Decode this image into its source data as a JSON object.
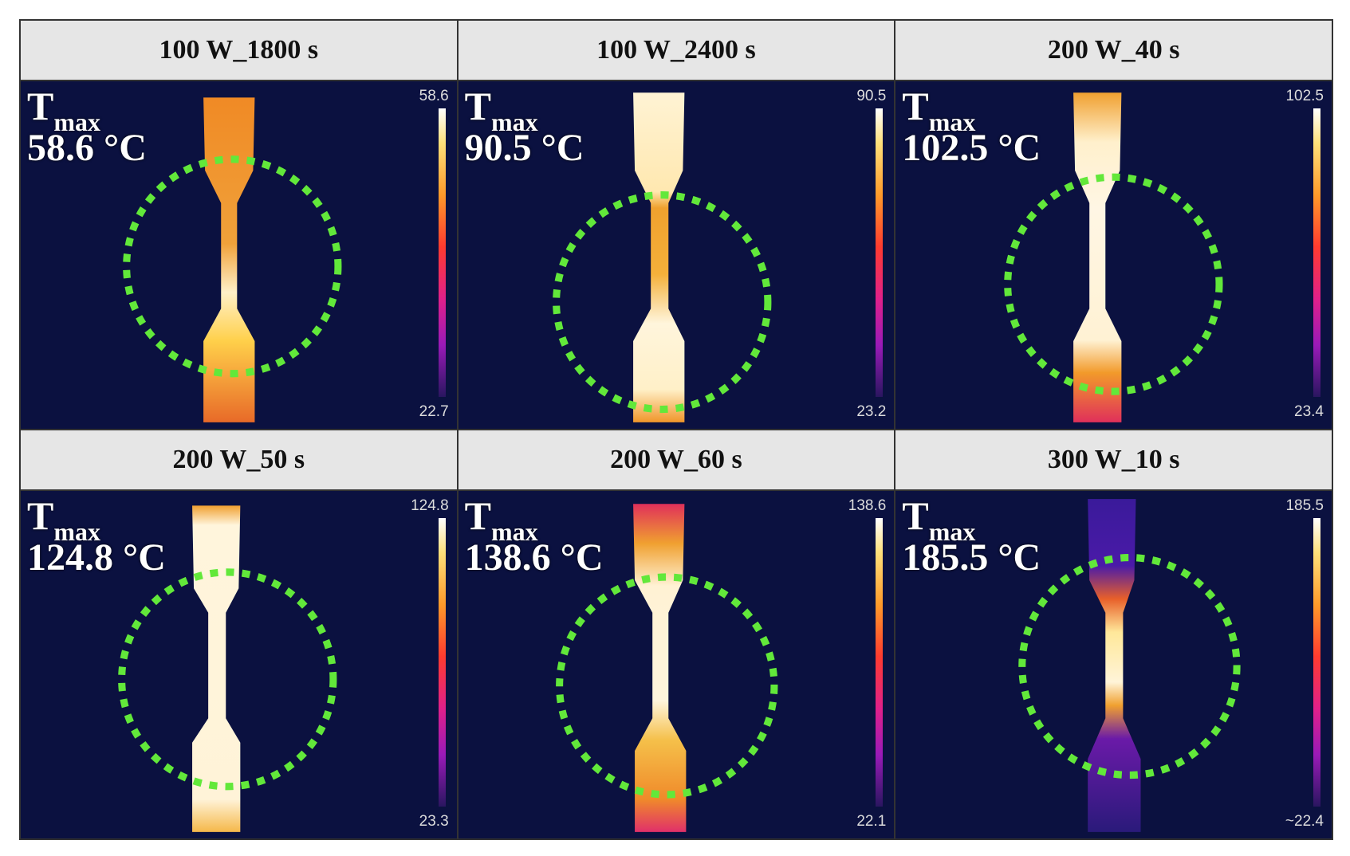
{
  "colors": {
    "background": "#0b1140",
    "header": "#e6e6e6",
    "circle": "#62e83a"
  },
  "panels": [
    {
      "title": "100 W_1800 s",
      "t_symbol": "T",
      "t_sub": "max",
      "tmax_label": "58.6 °C",
      "scale_max": "58.6",
      "scale_min": "22.7"
    },
    {
      "title": "100 W_2400 s",
      "t_symbol": "T",
      "t_sub": "max",
      "tmax_label": "90.5 °C",
      "scale_max": "90.5",
      "scale_min": "23.2"
    },
    {
      "title": "200 W_40 s",
      "t_symbol": "T",
      "t_sub": "max",
      "tmax_label": "102.5 °C",
      "scale_max": "102.5",
      "scale_min": "23.4"
    },
    {
      "title": "200 W_50 s",
      "t_symbol": "T",
      "t_sub": "max",
      "tmax_label": "124.8 °C",
      "scale_max": "124.8",
      "scale_min": "23.3"
    },
    {
      "title": "200 W_60 s",
      "t_symbol": "T",
      "t_sub": "max",
      "tmax_label": "138.6 °C",
      "scale_max": "138.6",
      "scale_min": "22.1"
    },
    {
      "title": "300 W_10 s",
      "t_symbol": "T",
      "t_sub": "max",
      "tmax_label": "185.5 °C",
      "scale_max": "185.5",
      "scale_min": "~22.4"
    }
  ]
}
